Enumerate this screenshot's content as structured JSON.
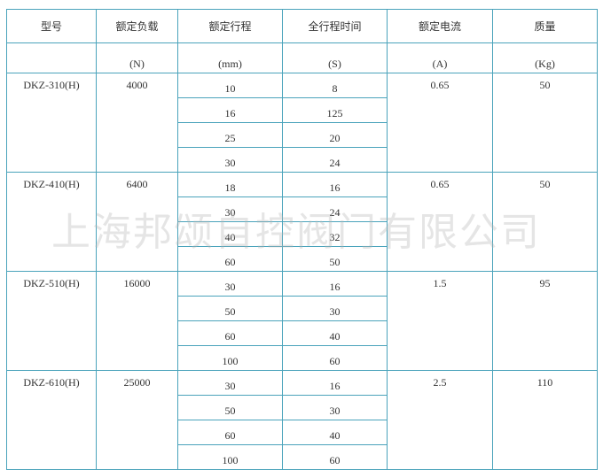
{
  "headers": [
    "型号",
    "额定负载",
    "额定行程",
    "全行程时间",
    "额定电流",
    "质量"
  ],
  "units": [
    "",
    "(N)",
    "(mm)",
    "(S)",
    "(A)",
    "(Kg)"
  ],
  "groups": [
    {
      "model": "DKZ-310(H)",
      "load": "4000",
      "current": "0.65",
      "mass": "50",
      "rows": [
        [
          "10",
          "8"
        ],
        [
          "16",
          "125"
        ],
        [
          "25",
          "20"
        ],
        [
          "30",
          "24"
        ]
      ]
    },
    {
      "model": "DKZ-410(H)",
      "load": "6400",
      "current": "0.65",
      "mass": "50",
      "rows": [
        [
          "18",
          "16"
        ],
        [
          "30",
          "24"
        ],
        [
          "40",
          "32"
        ],
        [
          "60",
          "50"
        ]
      ]
    },
    {
      "model": "DKZ-510(H)",
      "load": "16000",
      "current": "1.5",
      "mass": "95",
      "rows": [
        [
          "30",
          "16"
        ],
        [
          "50",
          "30"
        ],
        [
          "60",
          "40"
        ],
        [
          "100",
          "60"
        ]
      ]
    },
    {
      "model": "DKZ-610(H)",
      "load": "25000",
      "current": "2.5",
      "mass": "110",
      "rows": [
        [
          "30",
          "16"
        ],
        [
          "50",
          "30"
        ],
        [
          "60",
          "40"
        ],
        [
          "100",
          "60"
        ]
      ]
    }
  ],
  "watermark": "上海邦颂自控阀门有限公司",
  "border_color": "#4aa3bb"
}
